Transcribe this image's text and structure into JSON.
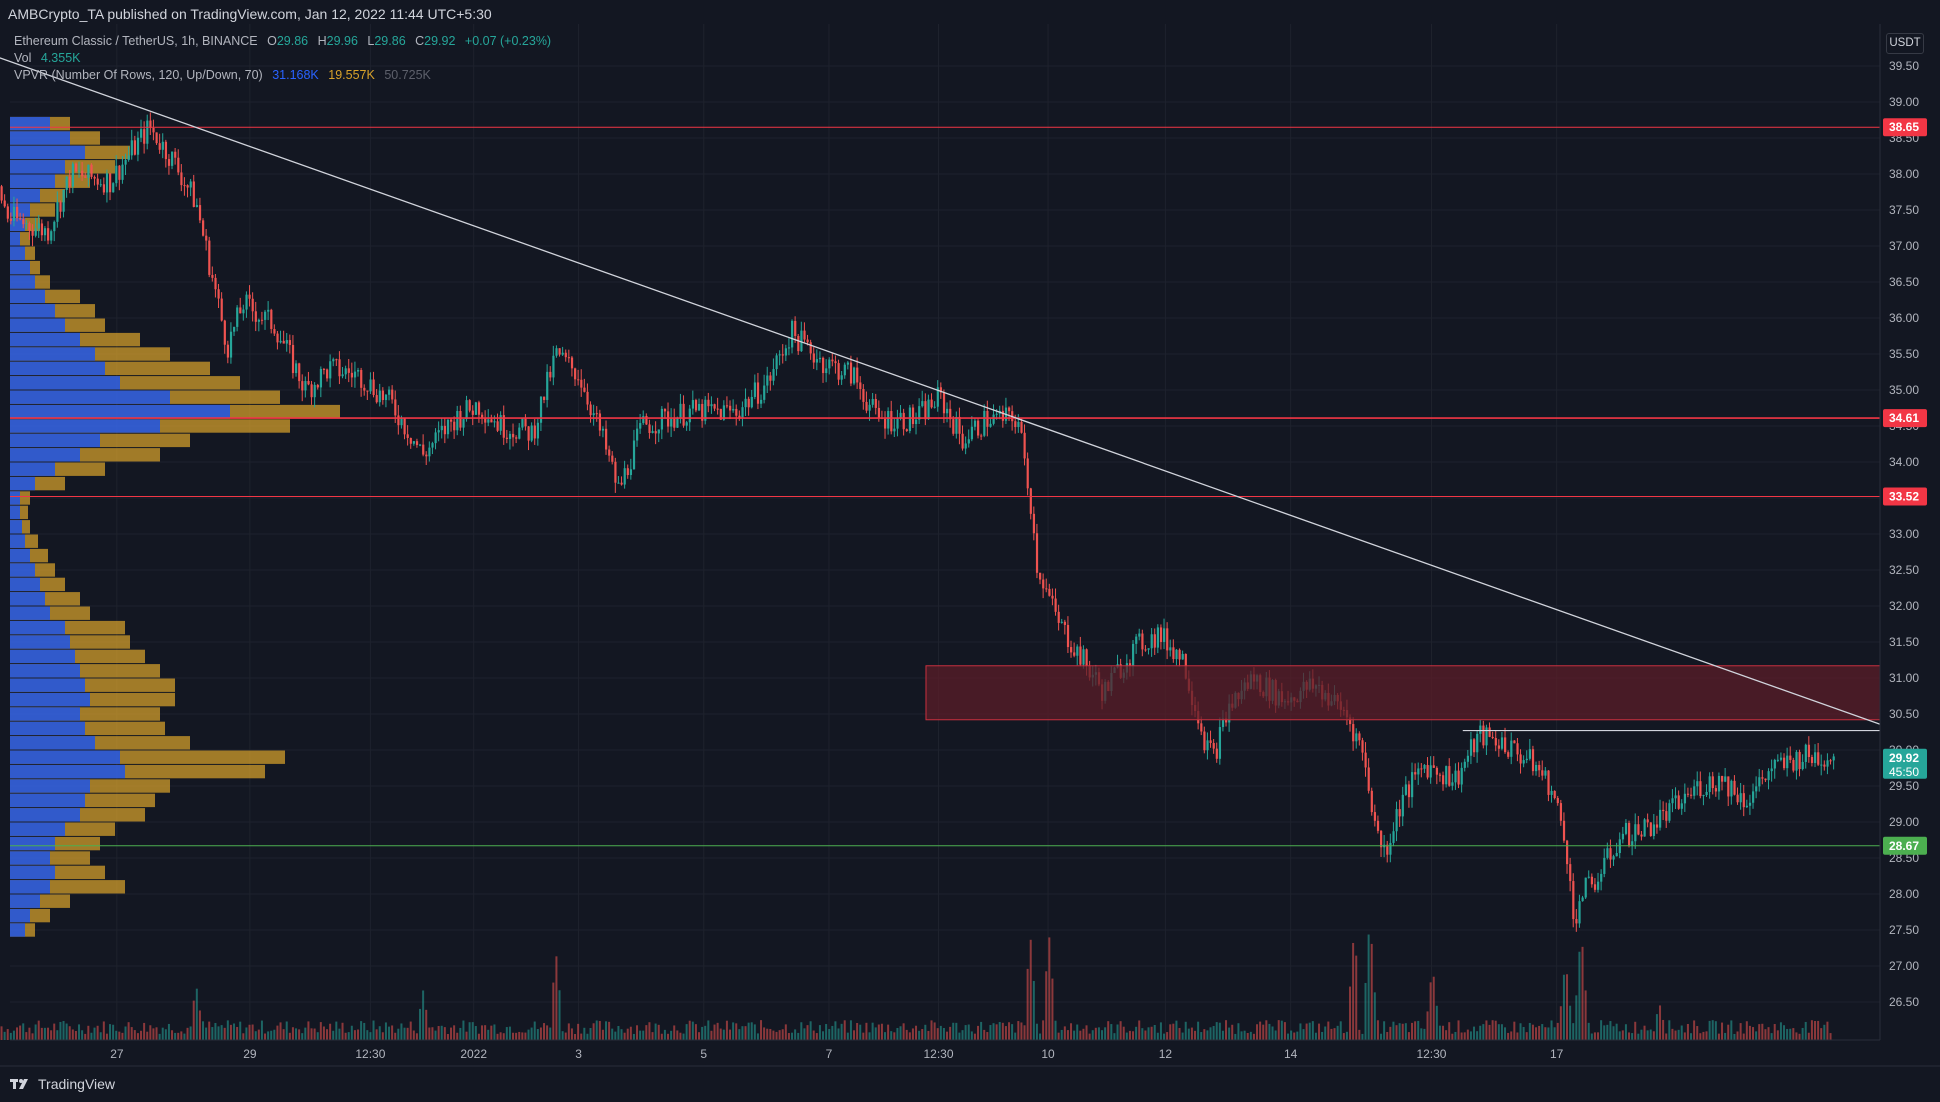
{
  "header": {
    "published": "AMBCrypto_TA published on TradingView.com, Jan 12, 2022 11:44 UTC+5:30"
  },
  "legend": {
    "symbol": "Ethereum Classic / TetherUS, 1h, BINANCE",
    "o_label": "O",
    "o": "29.86",
    "h_label": "H",
    "h": "29.96",
    "l_label": "L",
    "l": "29.86",
    "c_label": "C",
    "c": "29.92",
    "change": "+0.07 (+0.23%)",
    "vol_label": "Vol",
    "vol": "4.355K",
    "vpvr_label": "VPVR (Number Of Rows, 120, Up/Down, 70)",
    "vpvr_up": "31.168K",
    "vpvr_down": "19.557K",
    "vpvr_total": "50.725K"
  },
  "footer": {
    "brand": "TradingView"
  },
  "currency": "USDT",
  "colors": {
    "background": "#131722",
    "up": "#26a69a",
    "down": "#ef5350",
    "resistance": "#f23645",
    "support": "#4caf50",
    "trend": "#d1d4dc",
    "vp_up": "#2962ff",
    "vp_down": "#d8a22a",
    "zone_fill": "#5b1e28",
    "zone_border": "#c8303f"
  },
  "chart_data": {
    "type": "candlestick",
    "y_ticks": [
      "39.50",
      "39.00",
      "38.50",
      "38.00",
      "37.50",
      "37.00",
      "36.50",
      "36.00",
      "35.50",
      "35.00",
      "34.50",
      "34.00",
      "33.50",
      "33.00",
      "32.50",
      "32.00",
      "31.50",
      "31.00",
      "30.50",
      "30.00",
      "29.50",
      "29.00",
      "28.50",
      "28.00",
      "27.50",
      "27.00",
      "26.50"
    ],
    "x_ticks": [
      "27",
      "29",
      "12:30",
      "2022",
      "3",
      "5",
      "7",
      "12:30",
      "10",
      "12",
      "14",
      "12:30",
      "17"
    ],
    "ylim": [
      26.2,
      39.75
    ],
    "levels": [
      {
        "price": 38.65,
        "label": "38.65",
        "kind": "resistance"
      },
      {
        "price": 34.61,
        "label": "34.61",
        "kind": "resistance"
      },
      {
        "price": 33.52,
        "label": "33.52",
        "kind": "resistance"
      },
      {
        "price": 28.67,
        "label": "28.67",
        "kind": "support"
      }
    ],
    "current_price": {
      "label": "29.92",
      "countdown": "45:50"
    },
    "zone": {
      "top": 31.17,
      "bottom": 30.42,
      "start_x": 4.92,
      "end_x": 11.5
    },
    "breakout_line": {
      "price": 30.27,
      "start_x": 8.35,
      "end_x": 11.55
    },
    "trendline": {
      "points": [
        [
          -1.5,
          40.0
        ],
        [
          12.0,
          29.6
        ]
      ]
    },
    "price_path": [
      [
        -1.3,
        37.2
      ],
      [
        -1.15,
        38.6
      ],
      [
        -0.95,
        37.4
      ],
      [
        -0.7,
        37.2
      ],
      [
        -0.55,
        38.0
      ],
      [
        -0.3,
        37.9
      ],
      [
        -0.05,
        38.65
      ],
      [
        0.1,
        38.2
      ],
      [
        0.25,
        37.6
      ],
      [
        0.35,
        36.6
      ],
      [
        0.45,
        35.6
      ],
      [
        0.55,
        36.2
      ],
      [
        0.75,
        35.9
      ],
      [
        0.95,
        35.0
      ],
      [
        1.1,
        35.3
      ],
      [
        1.3,
        35.2
      ],
      [
        1.5,
        34.8
      ],
      [
        1.7,
        34.1
      ],
      [
        1.9,
        34.6
      ],
      [
        2.05,
        34.8
      ],
      [
        2.2,
        34.5
      ],
      [
        2.4,
        34.4
      ],
      [
        2.55,
        35.5
      ],
      [
        2.7,
        35.2
      ],
      [
        2.85,
        34.3
      ],
      [
        2.95,
        33.6
      ],
      [
        3.1,
        34.5
      ],
      [
        3.4,
        34.7
      ],
      [
        3.7,
        34.7
      ],
      [
        3.9,
        35.1
      ],
      [
        4.05,
        35.8
      ],
      [
        4.25,
        35.4
      ],
      [
        4.45,
        35.2
      ],
      [
        4.6,
        34.6
      ],
      [
        4.85,
        34.6
      ],
      [
        5.0,
        34.9
      ],
      [
        5.15,
        34.3
      ],
      [
        5.3,
        34.6
      ],
      [
        5.5,
        34.6
      ],
      [
        5.58,
        33.5
      ],
      [
        5.62,
        32.6
      ],
      [
        5.75,
        31.8
      ],
      [
        5.9,
        31.3
      ],
      [
        6.05,
        30.8
      ],
      [
        6.2,
        31.3
      ],
      [
        6.3,
        31.5
      ],
      [
        6.4,
        31.6
      ],
      [
        6.55,
        31.3
      ],
      [
        6.7,
        30.1
      ],
      [
        6.75,
        29.9
      ],
      [
        6.85,
        30.6
      ],
      [
        7.0,
        31.0
      ],
      [
        7.2,
        30.7
      ],
      [
        7.4,
        30.9
      ],
      [
        7.6,
        30.5
      ],
      [
        7.7,
        30.0
      ],
      [
        7.8,
        28.8
      ],
      [
        7.85,
        28.6
      ],
      [
        7.95,
        29.3
      ],
      [
        8.1,
        29.8
      ],
      [
        8.3,
        29.6
      ],
      [
        8.45,
        30.2
      ],
      [
        8.6,
        30.1
      ],
      [
        8.8,
        29.8
      ],
      [
        8.9,
        29.5
      ],
      [
        9.0,
        28.8
      ],
      [
        9.05,
        27.6
      ],
      [
        9.1,
        28.0
      ],
      [
        9.2,
        28.2
      ],
      [
        9.35,
        28.8
      ],
      [
        9.5,
        28.9
      ],
      [
        9.7,
        29.2
      ],
      [
        9.85,
        29.5
      ],
      [
        10.0,
        29.6
      ],
      [
        10.15,
        29.3
      ],
      [
        10.3,
        29.7
      ],
      [
        10.5,
        29.9
      ],
      [
        10.7,
        29.92
      ]
    ],
    "volume_spikes": [
      [
        -1.05,
        0.35
      ],
      [
        0.25,
        0.45
      ],
      [
        1.7,
        0.4
      ],
      [
        2.55,
        0.7
      ],
      [
        5.58,
        0.85
      ],
      [
        5.7,
        0.85
      ],
      [
        7.65,
        0.9
      ],
      [
        7.75,
        1.0
      ],
      [
        8.15,
        0.6
      ],
      [
        9.0,
        0.65
      ],
      [
        9.1,
        0.9
      ],
      [
        9.6,
        0.3
      ]
    ],
    "vpvr_rows": [
      [
        38.7,
        40,
        60
      ],
      [
        38.5,
        60,
        90
      ],
      [
        38.3,
        75,
        120
      ],
      [
        38.1,
        55,
        105
      ],
      [
        37.9,
        45,
        80
      ],
      [
        37.7,
        30,
        55
      ],
      [
        37.5,
        20,
        45
      ],
      [
        37.3,
        15,
        30
      ],
      [
        37.1,
        10,
        20
      ],
      [
        36.9,
        15,
        25
      ],
      [
        36.7,
        20,
        30
      ],
      [
        36.5,
        25,
        40
      ],
      [
        36.3,
        35,
        70
      ],
      [
        36.1,
        45,
        85
      ],
      [
        35.9,
        55,
        95
      ],
      [
        35.7,
        70,
        130
      ],
      [
        35.5,
        85,
        160
      ],
      [
        35.3,
        95,
        200
      ],
      [
        35.1,
        110,
        230
      ],
      [
        34.9,
        160,
        270
      ],
      [
        34.7,
        220,
        330
      ],
      [
        34.5,
        150,
        280
      ],
      [
        34.3,
        90,
        180
      ],
      [
        34.1,
        70,
        150
      ],
      [
        33.9,
        45,
        95
      ],
      [
        33.7,
        25,
        55
      ],
      [
        33.5,
        10,
        20
      ],
      [
        33.3,
        10,
        18
      ],
      [
        33.1,
        12,
        20
      ],
      [
        32.9,
        15,
        28
      ],
      [
        32.7,
        20,
        38
      ],
      [
        32.5,
        25,
        45
      ],
      [
        32.3,
        30,
        55
      ],
      [
        32.1,
        35,
        70
      ],
      [
        31.9,
        40,
        80
      ],
      [
        31.7,
        55,
        115
      ],
      [
        31.5,
        60,
        120
      ],
      [
        31.3,
        65,
        135
      ],
      [
        31.1,
        70,
        150
      ],
      [
        30.9,
        75,
        165
      ],
      [
        30.7,
        80,
        165
      ],
      [
        30.5,
        70,
        150
      ],
      [
        30.3,
        75,
        155
      ],
      [
        30.1,
        85,
        180
      ],
      [
        29.9,
        110,
        275
      ],
      [
        29.7,
        115,
        255
      ],
      [
        29.5,
        80,
        160
      ],
      [
        29.3,
        75,
        145
      ],
      [
        29.1,
        70,
        135
      ],
      [
        28.9,
        55,
        105
      ],
      [
        28.7,
        45,
        90
      ],
      [
        28.5,
        40,
        80
      ],
      [
        28.3,
        45,
        95
      ],
      [
        28.1,
        40,
        115
      ],
      [
        27.9,
        30,
        60
      ],
      [
        27.7,
        20,
        40
      ],
      [
        27.5,
        15,
        25
      ]
    ]
  }
}
